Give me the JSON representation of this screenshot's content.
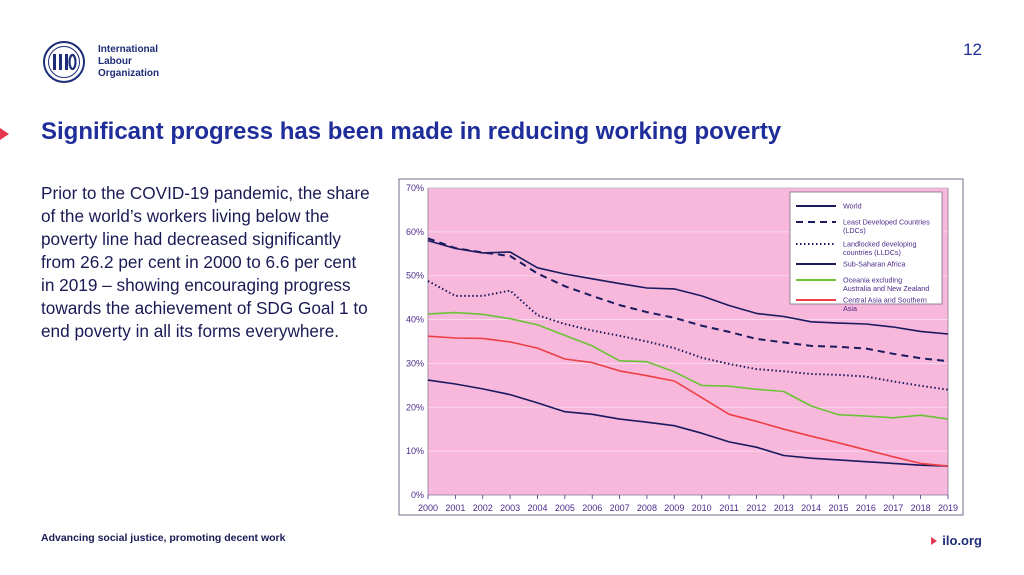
{
  "header": {
    "org_lines": [
      "International",
      "Labour",
      "Organization"
    ],
    "page_number": "12"
  },
  "slide": {
    "title": "Significant progress has been made in reducing working poverty",
    "body": "Prior to the COVID-19 pandemic, the share of the world’s workers living below the poverty line had decreased significantly from 26.2 per cent in 2000 to 6.6 per cent in 2019 – showing encouraging progress towards the achievement of SDG Goal 1 to end poverty in all its forms everywhere."
  },
  "footer": {
    "tagline": "Advancing social justice, promoting decent work",
    "site": "ilo.org"
  },
  "colors": {
    "brand_blue": "#1e2d9a",
    "accent_red": "#e8384f",
    "plot_bg": "#f7b8dc"
  },
  "chart_data": {
    "type": "line",
    "title": "",
    "xlabel": "",
    "ylabel": "",
    "x": [
      "2000",
      "2001",
      "2002",
      "2003",
      "2004",
      "2005",
      "2006",
      "2007",
      "2008",
      "2009",
      "2010",
      "2011",
      "2012",
      "2013",
      "2014",
      "2015",
      "2016",
      "2017",
      "2018",
      "2019"
    ],
    "ylim": [
      0,
      70
    ],
    "yticks": [
      "0%",
      "10%",
      "20%",
      "30%",
      "40%",
      "50%",
      "60%",
      "70%"
    ],
    "ytick_values": [
      0,
      10,
      20,
      30,
      40,
      50,
      60,
      70
    ],
    "grid": true,
    "legend_position": "top-right",
    "series": [
      {
        "name": "World",
        "color": "#1a1a5e",
        "style": "solid",
        "values": [
          26.2,
          25.3,
          24.2,
          22.9,
          21.0,
          19.0,
          18.4,
          17.3,
          16.6,
          15.8,
          14.1,
          12.1,
          10.9,
          9.0,
          8.4,
          8.0,
          7.6,
          7.2,
          6.8,
          6.6
        ]
      },
      {
        "name": "Least Developed Countries (LDCs)",
        "color": "#1a1a5e",
        "style": "dashed",
        "values": [
          58.5,
          56.3,
          55.3,
          54.5,
          50.5,
          47.6,
          45.4,
          43.3,
          41.7,
          40.4,
          38.6,
          37.2,
          35.6,
          34.8,
          34.0,
          33.8,
          33.4,
          32.2,
          31.2,
          30.5
        ]
      },
      {
        "name": "Landlocked developing countries (LLDCs)",
        "color": "#1a1a5e",
        "style": "dotted",
        "values": [
          48.8,
          45.4,
          45.4,
          46.6,
          41.0,
          39.0,
          37.5,
          36.3,
          35.0,
          33.5,
          31.3,
          29.9,
          28.7,
          28.2,
          27.6,
          27.4,
          27.0,
          25.9,
          24.9,
          24.0
        ]
      },
      {
        "name": "Sub-Saharan Africa",
        "color": "#1a1a5e",
        "style": "solid",
        "values": [
          58.0,
          56.2,
          55.2,
          55.4,
          51.8,
          50.4,
          49.3,
          48.2,
          47.2,
          47.0,
          45.4,
          43.2,
          41.4,
          40.7,
          39.5,
          39.2,
          39.0,
          38.3,
          37.3,
          36.7
        ]
      },
      {
        "name": "Oceania excluding Australia and New Zealand",
        "color": "#6cc236",
        "style": "solid",
        "values": [
          41.3,
          41.6,
          41.2,
          40.2,
          38.8,
          36.4,
          34.0,
          30.6,
          30.4,
          28.1,
          25.0,
          24.8,
          24.1,
          23.6,
          20.3,
          18.3,
          18.0,
          17.6,
          18.2,
          17.3
        ]
      },
      {
        "name": "Central Asia and Southern Asia",
        "color": "#ee3f46",
        "style": "solid",
        "values": [
          36.2,
          35.8,
          35.7,
          34.9,
          33.5,
          31.0,
          30.2,
          28.3,
          27.2,
          26.0,
          22.2,
          18.4,
          16.8,
          15.0,
          13.4,
          11.9,
          10.3,
          8.7,
          7.2,
          6.6
        ]
      }
    ]
  }
}
